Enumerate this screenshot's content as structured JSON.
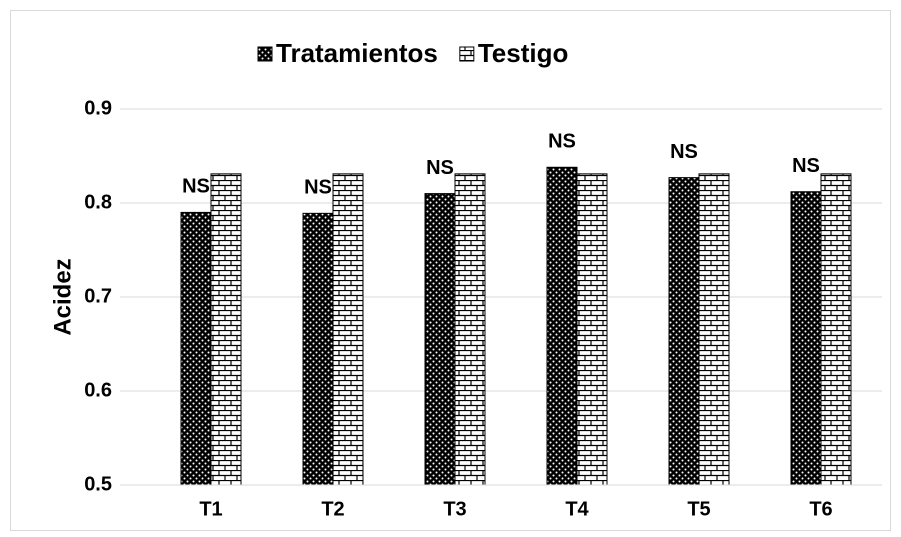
{
  "chart_data": {
    "type": "bar",
    "ylabel": "Acidez",
    "categories": [
      "T1",
      "T2",
      "T3",
      "T4",
      "T5",
      "T6"
    ],
    "series": [
      {
        "name": "Tratamientos",
        "color": "#000000",
        "pattern": "dots",
        "values": [
          0.79,
          0.789,
          0.81,
          0.838,
          0.827,
          0.812
        ]
      },
      {
        "name": "Testigo",
        "color": "#ffffff",
        "pattern": "bricks",
        "values": [
          0.831,
          0.831,
          0.831,
          0.831,
          0.831,
          0.831
        ]
      }
    ],
    "annotations": [
      "NS",
      "NS",
      "NS",
      "NS",
      "NS",
      "NS"
    ],
    "ylim": [
      0.5,
      0.9
    ],
    "yticks": [
      0.5,
      0.6,
      0.7,
      0.8,
      0.9
    ],
    "grid": true,
    "legend": "top"
  }
}
